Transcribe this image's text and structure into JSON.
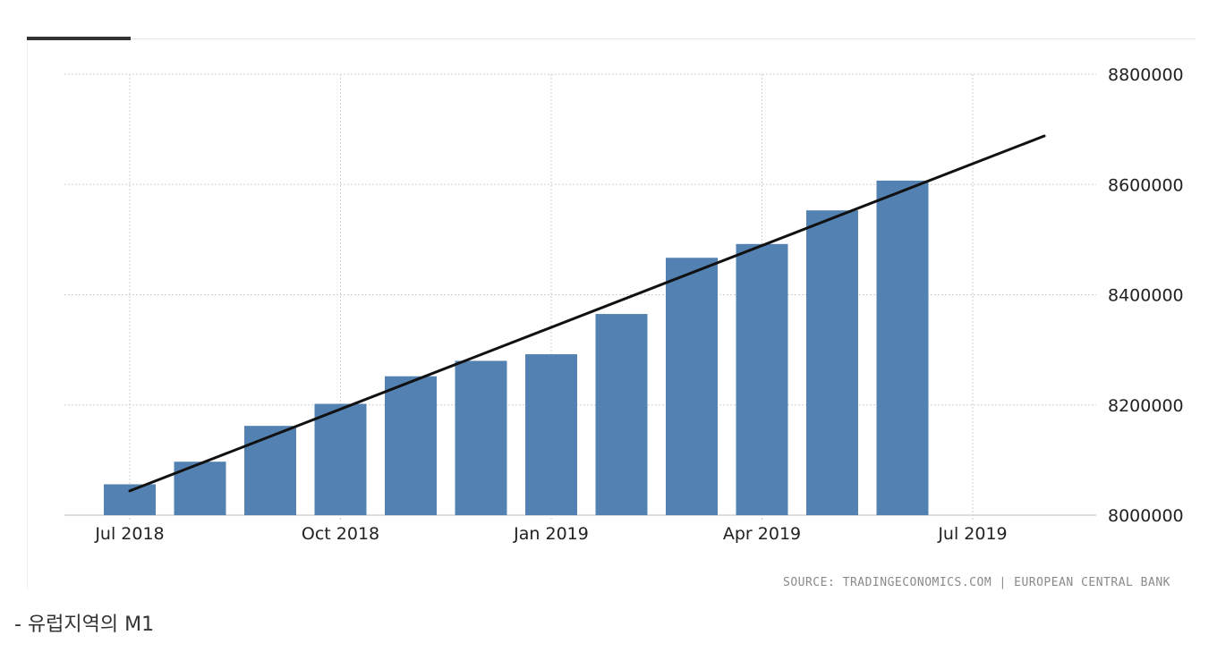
{
  "chart_data": {
    "type": "bar",
    "title": "",
    "xlabel": "",
    "ylabel": "",
    "categories": [
      "2018-07",
      "2018-08",
      "2018-09",
      "2018-10",
      "2018-11",
      "2018-12",
      "2019-01",
      "2019-02",
      "2019-03",
      "2019-04",
      "2019-05",
      "2019-06"
    ],
    "values": [
      8056000,
      8097000,
      8162000,
      8202000,
      8252000,
      8280000,
      8292000,
      8365000,
      8467000,
      8492000,
      8553000,
      8607000
    ],
    "trendline": {
      "start": {
        "x": "2018-07",
        "y": 8044000
      },
      "end": {
        "x": "2019-07",
        "y": 8688000
      }
    },
    "x_tick_labels": [
      "Jul 2018",
      "Oct 2018",
      "Jan 2019",
      "Apr 2019",
      "Jul 2019"
    ],
    "y_tick_labels": [
      "8000000",
      "8200000",
      "8400000",
      "8600000",
      "8800000"
    ],
    "ylim": [
      8000000,
      8800000
    ],
    "xlim": [
      "2018-07",
      "2019-08"
    ],
    "grid": true,
    "bar_color": "#5281b2",
    "trend_color": "#111111"
  },
  "source": "SOURCE: TRADINGECONOMICS.COM | EUROPEAN CENTRAL BANK",
  "caption": "- 유럽지역의 M1"
}
